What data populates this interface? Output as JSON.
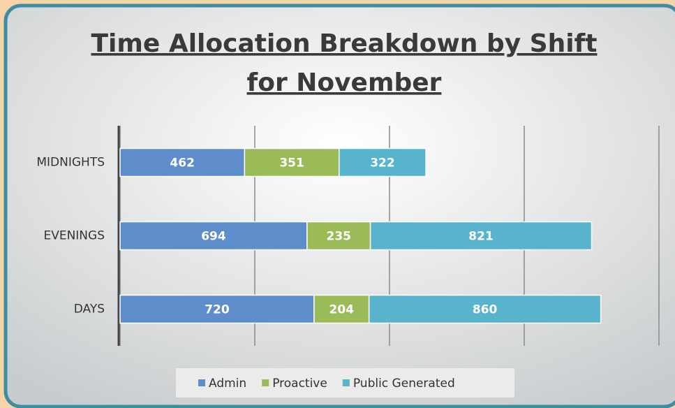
{
  "chart_data": {
    "type": "stacked_barh",
    "title": [
      "Time Allocation Breakdown by Shift",
      "for November"
    ],
    "categories": [
      "MIDNIGHTS",
      "EVENINGS",
      "DAYS"
    ],
    "series": [
      {
        "name": "Admin",
        "color": "#5e8dcb",
        "values": [
          462,
          694,
          720
        ]
      },
      {
        "name": "Proactive",
        "color": "#9bbb59",
        "values": [
          351,
          235,
          204
        ]
      },
      {
        "name": "Public Generated",
        "color": "#58b4cd",
        "values": [
          322,
          821,
          860
        ]
      }
    ],
    "xlim": [
      0,
      2000
    ],
    "xticks": [
      0,
      500,
      1000,
      1500,
      2000
    ],
    "grid": true,
    "legend": "bottom"
  }
}
